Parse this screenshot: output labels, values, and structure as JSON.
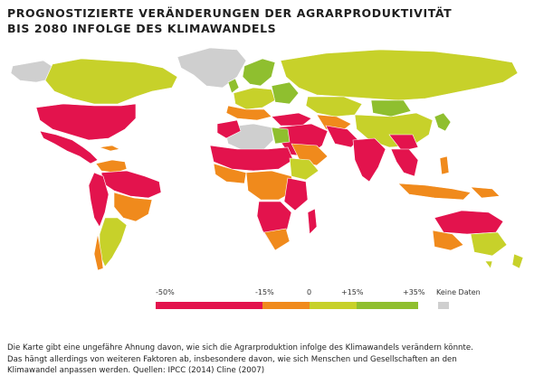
{
  "title": {
    "line1": "PROGNOSTIZIERTE VERÄNDERUNGEN DER AGRARPRODUKTIVITÄT",
    "line2": "BIS 2080 INFOLGE DES KLIMAWANDELS"
  },
  "legend": {
    "labels": [
      "-50%",
      "-15%",
      "0",
      "+15%",
      "+35%",
      "Keine Daten"
    ],
    "colors": {
      "minus50_minus15": "#e3134d",
      "minus15_0": "#f08a1c",
      "zero_plus15": "#c7d12a",
      "plus15_plus35": "#8fbf2f",
      "no_data": "#cfcfcf"
    }
  },
  "note": {
    "line1": "Die Karte gibt eine ungefähre Ahnung davon, wie sich die Agrarproduktion infolge des Klimawandels verändern könnte.",
    "line2": "Das hängt allerdings von weiteren Faktoren ab, insbesondere davon, wie sich Menschen und Gesellschaften an den",
    "line3": "Klimawandel anpassen werden. Quellen: IPCC (2014) Cline (2007)"
  }
}
